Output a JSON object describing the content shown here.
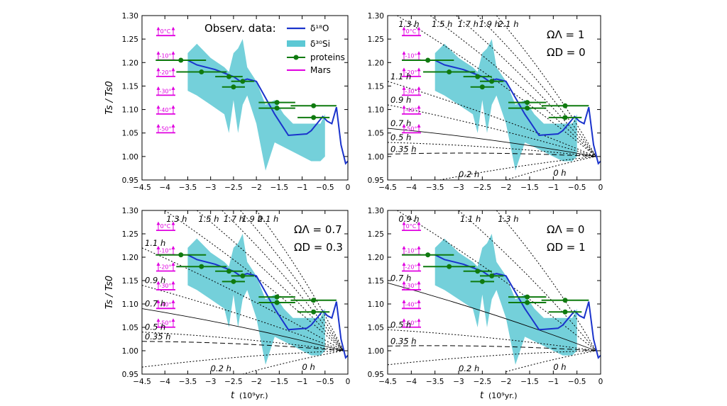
{
  "figure": {
    "xlabel_italic": "t",
    "xlabel_unit": "(10⁹yr.)",
    "ylabel": "Ts / Ts0",
    "legend": {
      "title": "Observ. data:",
      "entries": [
        "δ¹⁸O",
        "δ³⁰Si",
        "proteins",
        "Mars"
      ]
    },
    "colors": {
      "oxygen_line": "#1a33cc",
      "silicon_band": "#5cc8d4",
      "proteins": "#0f7a0f",
      "mars": "#e000e0",
      "curves": "#000000"
    }
  },
  "chart_data": [
    {
      "type": "line",
      "panel": "top-left",
      "annotation": [],
      "xlim": [
        -4.5,
        0
      ],
      "ylim": [
        0.95,
        1.3
      ],
      "xticks": [
        "−4.5",
        "−4",
        "−3.5",
        "−3",
        "−2.5",
        "−2",
        "−1.5",
        "−1",
        "−0.5",
        "0"
      ],
      "yticks": [
        "0.95",
        "1.00",
        "1.05",
        "1.10",
        "1.15",
        "1.20",
        "1.25",
        "1.30"
      ],
      "mars_labels": [
        "0°C",
        "-10°",
        "-20°",
        "-30°",
        "-40°",
        "-50°"
      ],
      "curves": []
    },
    {
      "type": "line",
      "panel": "top-right",
      "annotation": [
        "ΩΛ = 1",
        "ΩD = 0"
      ],
      "xlim": [
        -4.5,
        0
      ],
      "ylim": [
        0.95,
        1.3
      ],
      "xticks": [
        "−4.5",
        "−4",
        "−3.5",
        "−3",
        "−2.5",
        "−2",
        "−1.5",
        "−1",
        "−0.5",
        "0"
      ],
      "yticks": [
        "0.95",
        "1.00",
        "1.05",
        "1.10",
        "1.15",
        "1.20",
        "1.25",
        "1.30"
      ],
      "mars_labels": [
        "0°C",
        "-10°",
        "-20°",
        "-30°",
        "-40°",
        "-50°"
      ],
      "curves": [
        {
          "label": "2.1 h",
          "x": [
            -2.2,
            -0.1
          ],
          "y": [
            1.3,
            1.0
          ]
        },
        {
          "label": "1.9 h",
          "x": [
            -2.6,
            -0.1
          ],
          "y": [
            1.3,
            1.0
          ]
        },
        {
          "label": "1.7 h",
          "x": [
            -3.05,
            -0.1
          ],
          "y": [
            1.3,
            1.0
          ]
        },
        {
          "label": "1.5 h",
          "x": [
            -3.6,
            -0.1
          ],
          "y": [
            1.3,
            1.0
          ]
        },
        {
          "label": "1.3 h",
          "x": [
            -4.3,
            -0.1
          ],
          "y": [
            1.3,
            1.0
          ]
        },
        {
          "label": "1.1 h",
          "x": [
            -4.5,
            -0.1
          ],
          "y": [
            1.16,
            1.0
          ]
        },
        {
          "label": "0.9 h",
          "x": [
            -4.5,
            -0.1
          ],
          "y": [
            1.11,
            1.0
          ]
        },
        {
          "label": "0.7 h",
          "x": [
            -4.5,
            -0.1
          ],
          "y": [
            1.06,
            1.0
          ]
        },
        {
          "label": "0.5 h",
          "x": [
            -4.5,
            -0.1
          ],
          "y": [
            1.03,
            1.0
          ]
        },
        {
          "label": "0.35 h",
          "x": [
            -4.5,
            -0.1
          ],
          "y": [
            1.005,
            1.0
          ]
        },
        {
          "label": "0.2 h",
          "x": [
            -3.4,
            -0.1
          ],
          "y": [
            0.95,
            1.0
          ]
        },
        {
          "label": "0 h",
          "x": [
            -2.0,
            -0.1
          ],
          "y": [
            0.95,
            1.0
          ]
        }
      ]
    },
    {
      "type": "line",
      "panel": "bottom-left",
      "annotation": [
        "ΩΛ = 0.7",
        "ΩD = 0.3"
      ],
      "xlim": [
        -4.5,
        0
      ],
      "ylim": [
        0.95,
        1.3
      ],
      "xticks": [
        "−4.5",
        "−4",
        "−3.5",
        "−3",
        "−2.5",
        "−2",
        "−1.5",
        "−1",
        "−0.5",
        "0"
      ],
      "yticks": [
        "0.95",
        "1.00",
        "1.05",
        "1.10",
        "1.15",
        "1.20",
        "1.25",
        "1.30"
      ],
      "mars_labels": [
        "0°C",
        "-10°",
        "-20°",
        "-30°",
        "-40°",
        "-50°"
      ],
      "curves": [
        {
          "label": "2.1 h",
          "x": [
            -2.0,
            -0.1
          ],
          "y": [
            1.3,
            1.0
          ]
        },
        {
          "label": "1.9 h",
          "x": [
            -2.35,
            -0.1
          ],
          "y": [
            1.3,
            1.0
          ]
        },
        {
          "label": "1.7 h",
          "x": [
            -2.75,
            -0.1
          ],
          "y": [
            1.3,
            1.0
          ]
        },
        {
          "label": "1.5 h",
          "x": [
            -3.3,
            -0.1
          ],
          "y": [
            1.3,
            1.0
          ]
        },
        {
          "label": "1.3 h",
          "x": [
            -4.0,
            -0.1
          ],
          "y": [
            1.3,
            1.0
          ]
        },
        {
          "label": "1.1 h",
          "x": [
            -4.5,
            -0.1
          ],
          "y": [
            1.22,
            1.0
          ]
        },
        {
          "label": "0.9 h",
          "x": [
            -4.5,
            -0.1
          ],
          "y": [
            1.14,
            1.0
          ]
        },
        {
          "label": "0.7 h",
          "x": [
            -4.5,
            -0.1
          ],
          "y": [
            1.09,
            1.0
          ]
        },
        {
          "label": "0.5 h",
          "x": [
            -4.5,
            -0.1
          ],
          "y": [
            1.04,
            1.0
          ]
        },
        {
          "label": "0.35 h",
          "x": [
            -4.5,
            -0.1
          ],
          "y": [
            1.02,
            1.0
          ]
        },
        {
          "label": "0.2 h",
          "x": [
            -4.5,
            -0.1
          ],
          "y": [
            0.965,
            1.0
          ]
        },
        {
          "label": "0 h",
          "x": [
            -2.3,
            -0.1
          ],
          "y": [
            0.95,
            1.0
          ]
        }
      ]
    },
    {
      "type": "line",
      "panel": "bottom-right",
      "annotation": [
        "ΩΛ = 0",
        "ΩD = 1"
      ],
      "xlim": [
        -4.5,
        0
      ],
      "ylim": [
        0.95,
        1.3
      ],
      "xticks": [
        "−4.5",
        "−4",
        "−3.5",
        "−3",
        "−2.5",
        "−2",
        "−1.5",
        "−1",
        "−0.5",
        "0"
      ],
      "yticks": [
        "0.95",
        "1.00",
        "1.05",
        "1.10",
        "1.15",
        "1.20",
        "1.25",
        "1.30"
      ],
      "mars_labels": [
        "0°C",
        "-10°",
        "-20°",
        "-30°",
        "-40°",
        "-50°"
      ],
      "curves": [
        {
          "label": "1.3 h",
          "x": [
            -2.2,
            -0.1
          ],
          "y": [
            1.3,
            1.0
          ]
        },
        {
          "label": "1.1 h",
          "x": [
            -3.0,
            -0.1
          ],
          "y": [
            1.3,
            1.0
          ]
        },
        {
          "label": "0.9 h",
          "x": [
            -4.3,
            -0.1
          ],
          "y": [
            1.3,
            1.0
          ]
        },
        {
          "label": "0.7 h",
          "x": [
            -4.5,
            -0.1
          ],
          "y": [
            1.145,
            1.0
          ]
        },
        {
          "label": "0.5 h",
          "x": [
            -4.5,
            -0.1
          ],
          "y": [
            1.045,
            1.0
          ]
        },
        {
          "label": "0.35 h",
          "x": [
            -4.5,
            -0.1
          ],
          "y": [
            1.01,
            1.0
          ]
        },
        {
          "label": "0.2 h",
          "x": [
            -4.5,
            -0.1
          ],
          "y": [
            0.97,
            1.0
          ]
        },
        {
          "label": "0 h",
          "x": [
            -2.0,
            -0.1
          ],
          "y": [
            0.955,
            1.0
          ]
        }
      ]
    }
  ],
  "shared_series": {
    "oxygen_line": {
      "x": [
        -3.5,
        -3.3,
        -2.9,
        -2.5,
        -2.35,
        -2.2,
        -2.0,
        -1.8,
        -1.6,
        -1.5,
        -1.3,
        -0.9,
        -0.8,
        -0.55,
        -0.45,
        -0.35,
        -0.25,
        -0.15,
        -0.05,
        0.0
      ],
      "y": [
        1.205,
        1.195,
        1.185,
        1.17,
        1.16,
        1.165,
        1.16,
        1.125,
        1.09,
        1.075,
        1.045,
        1.048,
        1.055,
        1.085,
        1.075,
        1.07,
        1.105,
        1.025,
        0.985,
        0.99
      ]
    },
    "silicon_band": {
      "x": [
        -3.5,
        -3.3,
        -3.0,
        -2.7,
        -2.6,
        -2.5,
        -2.4,
        -2.3,
        -2.2,
        -2.0,
        -1.8,
        -1.6,
        -1.4,
        -1.2,
        -1.0,
        -0.8,
        -0.6,
        -0.5
      ],
      "upper": [
        1.22,
        1.24,
        1.21,
        1.19,
        1.18,
        1.22,
        1.23,
        1.25,
        1.19,
        1.16,
        1.11,
        1.12,
        1.09,
        1.07,
        1.07,
        1.07,
        1.07,
        1.09
      ],
      "lower": [
        1.14,
        1.13,
        1.11,
        1.09,
        1.05,
        1.12,
        1.05,
        1.11,
        1.13,
        1.07,
        0.97,
        1.03,
        1.02,
        1.01,
        1.0,
        0.99,
        0.99,
        1.0
      ]
    },
    "proteins": [
      {
        "x": -3.65,
        "y": 1.205,
        "xerr": 0.55
      },
      {
        "x": -3.2,
        "y": 1.18,
        "xerr": 0.55
      },
      {
        "x": -2.6,
        "y": 1.17,
        "xerr": 0.3
      },
      {
        "x": -2.3,
        "y": 1.16,
        "xerr": 0.25
      },
      {
        "x": -2.5,
        "y": 1.148,
        "xerr": 0.25
      },
      {
        "x": -1.55,
        "y": 1.115,
        "xerr": 0.4
      },
      {
        "x": -1.55,
        "y": 1.103,
        "xerr": 0.4
      },
      {
        "x": -0.75,
        "y": 1.108,
        "xerr": 0.5
      },
      {
        "x": -0.75,
        "y": 1.083,
        "xerr": 0.35
      }
    ]
  }
}
